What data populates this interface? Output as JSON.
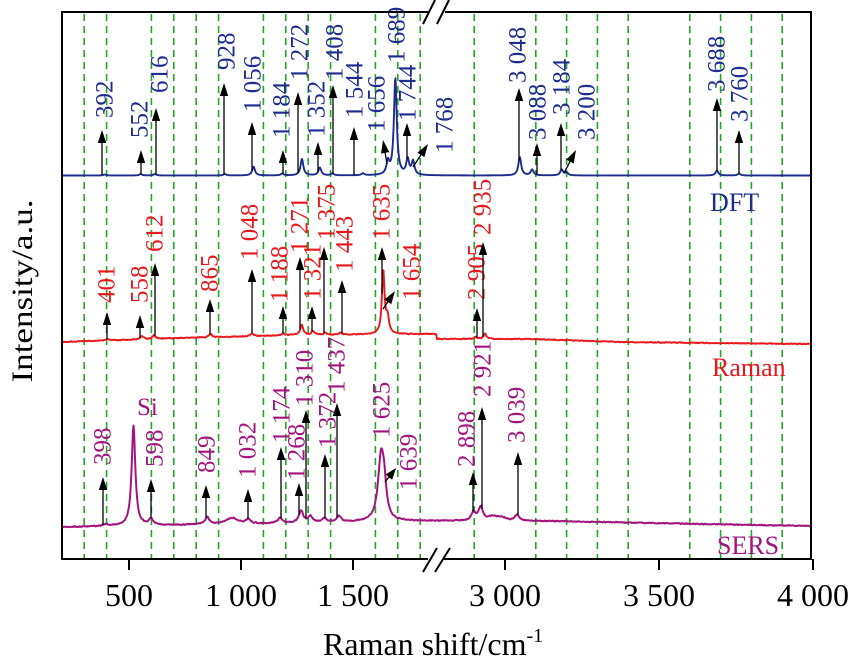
{
  "chart_data": {
    "type": "line",
    "title": "",
    "xlabel": "Raman shift/cm",
    "xlabel_superscript": "-1",
    "ylabel": "Intensity/a.u.",
    "xlim": [
      200,
      4000
    ],
    "axis_break": [
      1890,
      2790
    ],
    "x_ticks": [
      {
        "value": 500,
        "label": "500"
      },
      {
        "value": 1000,
        "label": "1 000"
      },
      {
        "value": 1500,
        "label": "1 500"
      },
      {
        "value": 3000,
        "label": "3 000"
      },
      {
        "value": 3500,
        "label": "3 500"
      },
      {
        "value": 4000,
        "label": "4 000"
      }
    ],
    "grid": true,
    "grid_style": "vertical dashed",
    "grid_x": [
      300,
      400,
      600,
      700,
      800,
      900,
      1100,
      1200,
      1300,
      1400,
      1600,
      1700,
      1800,
      2900,
      3100,
      3200,
      3300,
      3400,
      3600,
      3700,
      3800,
      3900
    ],
    "legend": "series names at right, beneath each trace",
    "intensity_note": "relative intensity, tallest peak of each series = 100",
    "series": [
      {
        "name": "DFT",
        "color": "#1e2b8f",
        "peaks": [
          {
            "shift": 392,
            "label": "392",
            "intensity": 1
          },
          {
            "shift": 552,
            "label": "552",
            "intensity": 1.5
          },
          {
            "shift": 616,
            "label": "616",
            "intensity": 1.5
          },
          {
            "shift": 928,
            "label": "928",
            "intensity": 1.5
          },
          {
            "shift": 1056,
            "label": "1 056",
            "intensity": 9
          },
          {
            "shift": 1184,
            "label": "1 184",
            "intensity": 2
          },
          {
            "shift": 1272,
            "label": "1 272",
            "intensity": 17
          },
          {
            "shift": 1352,
            "label": "1 352",
            "intensity": 8
          },
          {
            "shift": 1408,
            "label": "1 408",
            "intensity": 2
          },
          {
            "shift": 1544,
            "label": "1 544",
            "intensity": 2
          },
          {
            "shift": 1656,
            "label": "1 656",
            "intensity": 13
          },
          {
            "shift": 1689,
            "label": "1 689",
            "intensity": 100
          },
          {
            "shift": 1744,
            "label": "1 744",
            "intensity": 16
          },
          {
            "shift": 1768,
            "label": "1 768",
            "intensity": 14
          },
          {
            "shift": 3048,
            "label": "3 048",
            "intensity": 19
          },
          {
            "shift": 3088,
            "label": "3 088",
            "intensity": 6
          },
          {
            "shift": 3184,
            "label": "3 184",
            "intensity": 6
          },
          {
            "shift": 3200,
            "label": "3 200",
            "intensity": 3
          },
          {
            "shift": 3688,
            "label": "3 688",
            "intensity": 5
          },
          {
            "shift": 3760,
            "label": "3 760",
            "intensity": 2
          }
        ]
      },
      {
        "name": "Raman",
        "color": "#e8171c",
        "peaks": [
          {
            "shift": 401,
            "label": "401",
            "intensity": 2
          },
          {
            "shift": 558,
            "label": "558",
            "intensity": 5
          },
          {
            "shift": 612,
            "label": "612",
            "intensity": 6
          },
          {
            "shift": 865,
            "label": "865",
            "intensity": 5
          },
          {
            "shift": 1048,
            "label": "1 048",
            "intensity": 5
          },
          {
            "shift": 1188,
            "label": "1 188",
            "intensity": 3
          },
          {
            "shift": 1271,
            "label": "1 271",
            "intensity": 16
          },
          {
            "shift": 1321,
            "label": "1 321",
            "intensity": 6
          },
          {
            "shift": 1375,
            "label": "1 375",
            "intensity": 3
          },
          {
            "shift": 1443,
            "label": "1 443",
            "intensity": 3
          },
          {
            "shift": 1635,
            "label": "1 635",
            "intensity": 100
          },
          {
            "shift": 1654,
            "label": "1 654",
            "intensity": 25
          },
          {
            "shift": 2905,
            "label": "2 905",
            "intensity": 3
          },
          {
            "shift": 2935,
            "label": "2 935",
            "intensity": 8
          }
        ]
      },
      {
        "name": "SERS",
        "color": "#a2157f",
        "peaks": [
          {
            "shift": 398,
            "label": "398",
            "intensity": 2
          },
          {
            "shift": 520,
            "label": "Si",
            "intensity": 100
          },
          {
            "shift": 598,
            "label": "598",
            "intensity": 6
          },
          {
            "shift": 849,
            "label": "849",
            "intensity": 7
          },
          {
            "shift": 1032,
            "label": "1 032",
            "intensity": 4
          },
          {
            "shift": 1174,
            "label": "1 174",
            "intensity": 5
          },
          {
            "shift": 1268,
            "label": "1 268",
            "intensity": 12
          },
          {
            "shift": 1310,
            "label": "1 310",
            "intensity": 6
          },
          {
            "shift": 1372,
            "label": "1 372",
            "intensity": 4
          },
          {
            "shift": 1437,
            "label": "1 437",
            "intensity": 6
          },
          {
            "shift": 1625,
            "label": "1 625",
            "intensity": 62
          },
          {
            "shift": 1639,
            "label": "1 639",
            "intensity": 25
          },
          {
            "shift": 2898,
            "label": "2 898",
            "intensity": 8
          },
          {
            "shift": 2921,
            "label": "2 921",
            "intensity": 13
          },
          {
            "shift": 3039,
            "label": "3 039",
            "intensity": 6
          },
          {
            "shift": 960,
            "label": "",
            "intensity": 6
          },
          {
            "shift": 2960,
            "label": "",
            "intensity": 4
          },
          {
            "shift": 2990,
            "label": "",
            "intensity": 3
          }
        ]
      }
    ]
  },
  "colors": {
    "grid": "#22a822",
    "arrow": "#000000",
    "axis": "#000000"
  }
}
